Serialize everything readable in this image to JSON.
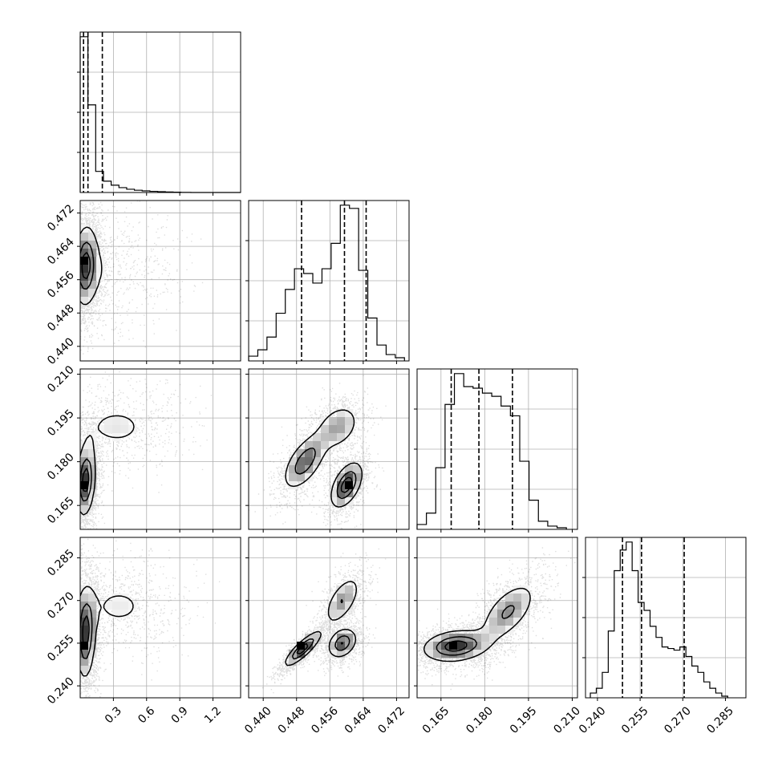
{
  "chart_data": {
    "type": "corner",
    "title": "",
    "grid": true,
    "parameters": [
      {
        "label": "",
        "range": [
          0.0,
          1.45
        ],
        "ticks": [
          0.3,
          0.6,
          0.9,
          1.2
        ],
        "tick_labels": [
          "0.3",
          "0.6",
          "0.9",
          "1.2"
        ],
        "quantiles": [
          0.03,
          0.07,
          0.2
        ]
      },
      {
        "label": "",
        "range": [
          0.4365,
          0.475
        ],
        "ticks": [
          0.44,
          0.448,
          0.456,
          0.464,
          0.472
        ],
        "tick_labels": [
          "0.440",
          "0.448",
          "0.456",
          "0.464",
          "0.472"
        ],
        "quantiles": [
          0.4492,
          0.4595,
          0.4647
        ]
      },
      {
        "label": "",
        "range": [
          0.1568,
          0.2118
        ],
        "ticks": [
          0.165,
          0.18,
          0.195,
          0.21
        ],
        "tick_labels": [
          "0.165",
          "0.180",
          "0.195",
          "0.210"
        ],
        "quantiles": [
          0.1685,
          0.178,
          0.1895
        ]
      },
      {
        "label": "",
        "range": [
          0.2358,
          0.2922
        ],
        "ticks": [
          0.24,
          0.255,
          0.27,
          0.285
        ],
        "tick_labels": [
          "0.240",
          "0.255",
          "0.270",
          "0.285"
        ],
        "quantiles": [
          0.2488,
          0.2555,
          0.2705
        ]
      }
    ],
    "histograms": [
      {
        "bins": [
          0.0,
          0.07,
          0.14,
          0.21,
          0.28,
          0.35,
          0.42,
          0.49,
          0.56,
          0.63,
          0.7,
          0.77,
          0.84,
          0.91,
          1.0,
          1.45
        ],
        "counts": [
          0.96,
          0.54,
          0.13,
          0.07,
          0.045,
          0.03,
          0.02,
          0.014,
          0.01,
          0.007,
          0.005,
          0.003,
          0.002,
          0.001,
          0.0
        ]
      },
      {
        "bins": [
          0.4365,
          0.4387,
          0.4409,
          0.4431,
          0.4453,
          0.4475,
          0.4497,
          0.4519,
          0.4541,
          0.4563,
          0.4585,
          0.4607,
          0.4629,
          0.4651,
          0.4673,
          0.4695,
          0.4717,
          0.4739
        ],
        "counts": [
          0.03,
          0.07,
          0.15,
          0.3,
          0.45,
          0.58,
          0.55,
          0.49,
          0.58,
          0.74,
          0.98,
          0.96,
          0.57,
          0.27,
          0.1,
          0.04,
          0.02
        ]
      },
      {
        "bins": [
          0.1568,
          0.16,
          0.1632,
          0.1664,
          0.1696,
          0.1728,
          0.176,
          0.1792,
          0.1824,
          0.1856,
          0.1888,
          0.192,
          0.1952,
          0.1984,
          0.2016,
          0.2048,
          0.208
        ],
        "counts": [
          0.03,
          0.1,
          0.38,
          0.77,
          0.96,
          0.88,
          0.87,
          0.84,
          0.82,
          0.76,
          0.7,
          0.42,
          0.18,
          0.05,
          0.02,
          0.01
        ]
      },
      {
        "bins": [
          0.2375,
          0.2396,
          0.2417,
          0.2438,
          0.2459,
          0.248,
          0.2501,
          0.2522,
          0.2543,
          0.2564,
          0.2585,
          0.2606,
          0.2627,
          0.2648,
          0.2669,
          0.269,
          0.2711,
          0.2732,
          0.2753,
          0.2774,
          0.2795,
          0.2816,
          0.2837,
          0.2858
        ],
        "counts": [
          0.03,
          0.06,
          0.16,
          0.42,
          0.8,
          0.93,
          0.98,
          0.8,
          0.6,
          0.55,
          0.45,
          0.38,
          0.32,
          0.31,
          0.3,
          0.32,
          0.26,
          0.2,
          0.16,
          0.1,
          0.06,
          0.03,
          0.01
        ]
      }
    ],
    "pairs": [
      {
        "x": 0,
        "y": 1,
        "components": [
          {
            "cx": 0.05,
            "cy": 0.4595,
            "sx": 0.06,
            "sy": 0.0055,
            "rho": 0.1,
            "w": 1.0,
            "peak": 0.46
          },
          {
            "cx": 0.3,
            "cy": 0.458,
            "sx": 0.25,
            "sy": 0.006,
            "rho": 0.0,
            "w": 0.25,
            "peak": 0.0
          }
        ],
        "contour_levels": [
          0.25,
          0.6,
          0.85
        ]
      },
      {
        "x": 0,
        "y": 2,
        "components": [
          {
            "cx": 0.05,
            "cy": 0.1735,
            "sx": 0.05,
            "sy": 0.007,
            "rho": 0.2,
            "w": 1.0,
            "peak": 0.172
          },
          {
            "cx": 0.33,
            "cy": 0.192,
            "sx": 0.25,
            "sy": 0.006,
            "rho": 0.0,
            "w": 0.3,
            "peak": 0.0
          }
        ],
        "contour_levels": [
          0.25,
          0.6,
          0.85
        ]
      },
      {
        "x": 0,
        "y": 3,
        "components": [
          {
            "cx": 0.05,
            "cy": 0.258,
            "sx": 0.05,
            "sy": 0.009,
            "rho": 0.1,
            "w": 1.0,
            "peak": 0.255
          },
          {
            "cx": 0.35,
            "cy": 0.268,
            "sx": 0.25,
            "sy": 0.007,
            "rho": 0.0,
            "w": 0.3,
            "peak": 0.0
          }
        ],
        "contour_levels": [
          0.25,
          0.6,
          0.85
        ]
      },
      {
        "x": 1,
        "y": 2,
        "components": [
          {
            "cx": 0.46,
            "cy": 0.172,
            "sx": 0.0022,
            "sy": 0.0045,
            "rho": 0.5,
            "w": 1.0,
            "peak": 0.1715
          },
          {
            "cx": 0.45,
            "cy": 0.18,
            "sx": 0.003,
            "sy": 0.0055,
            "rho": 0.6,
            "w": 0.8,
            "peak": 0.176
          },
          {
            "cx": 0.458,
            "cy": 0.192,
            "sx": 0.003,
            "sy": 0.0045,
            "rho": 0.3,
            "w": 0.55,
            "peak": 0.0
          }
        ],
        "contour_levels": [
          0.25,
          0.6,
          0.85
        ]
      },
      {
        "x": 1,
        "y": 3,
        "components": [
          {
            "cx": 0.4495,
            "cy": 0.253,
            "sx": 0.0025,
            "sy": 0.0035,
            "rho": 0.85,
            "w": 1.0,
            "peak": 0.255
          },
          {
            "cx": 0.459,
            "cy": 0.255,
            "sx": 0.002,
            "sy": 0.003,
            "rho": 0.3,
            "w": 0.85,
            "peak": 0.255
          },
          {
            "cx": 0.459,
            "cy": 0.27,
            "sx": 0.0025,
            "sy": 0.005,
            "rho": 0.6,
            "w": 0.6,
            "peak": 0.0
          }
        ],
        "contour_levels": [
          0.25,
          0.6,
          0.85
        ]
      },
      {
        "x": 2,
        "y": 3,
        "components": [
          {
            "cx": 0.17,
            "cy": 0.254,
            "sx": 0.0065,
            "sy": 0.0032,
            "rho": 0.2,
            "w": 1.0,
            "peak": 0.2535
          },
          {
            "cx": 0.188,
            "cy": 0.266,
            "sx": 0.0055,
            "sy": 0.006,
            "rho": 0.6,
            "w": 0.65,
            "peak": 0.0
          }
        ],
        "contour_levels": [
          0.25,
          0.6,
          0.85
        ]
      }
    ]
  }
}
